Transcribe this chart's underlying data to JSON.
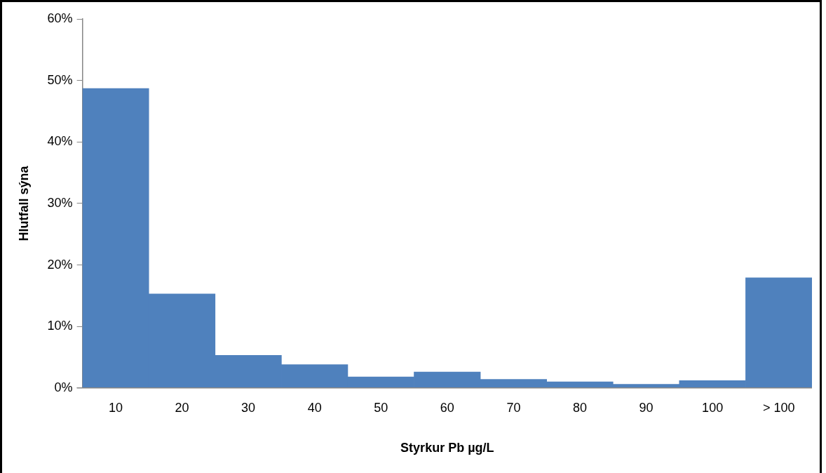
{
  "chart_data": {
    "type": "bar",
    "xlabel": "Styrkur Pb µg/L",
    "ylabel": "Hlutfall sýna",
    "categories": [
      "10",
      "20",
      "30",
      "40",
      "50",
      "60",
      "70",
      "80",
      "90",
      "100",
      "> 100"
    ],
    "values": [
      48.7,
      15.3,
      5.3,
      3.8,
      1.8,
      2.6,
      1.4,
      1.0,
      0.6,
      1.2,
      17.9
    ],
    "color": "#4f81bd",
    "ylim": [
      0,
      60
    ],
    "yticks": [
      {
        "value": 0,
        "label": "0%"
      },
      {
        "value": 10,
        "label": "10%"
      },
      {
        "value": 20,
        "label": "20%"
      },
      {
        "value": 30,
        "label": "30%"
      },
      {
        "value": 40,
        "label": "40%"
      },
      {
        "value": 50,
        "label": "50%"
      },
      {
        "value": 60,
        "label": "60%"
      }
    ],
    "grid": false,
    "legend": false
  }
}
